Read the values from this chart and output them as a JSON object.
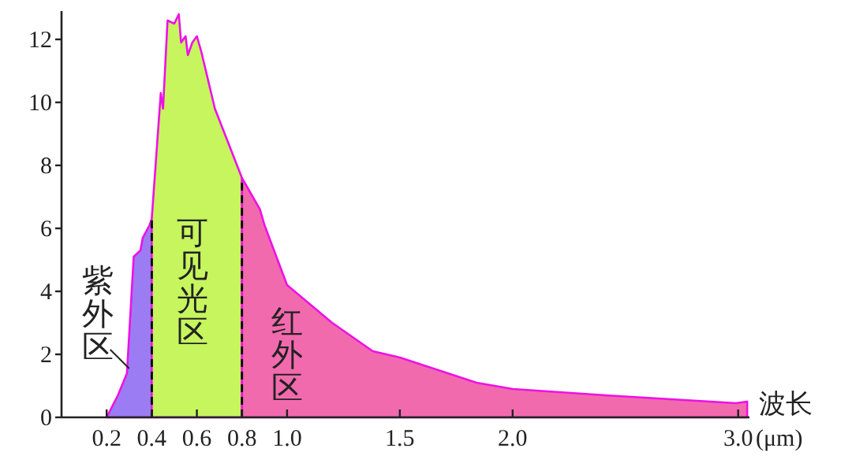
{
  "chart_data": {
    "type": "area",
    "xlabel": "波长",
    "grid": false,
    "xlim": [
      0,
      3.05
    ],
    "ylim": [
      0,
      12.9
    ],
    "xticks": [
      0.2,
      0.4,
      0.6,
      0.8,
      {
        "value": 1,
        "label": "1.0"
      },
      1.5,
      {
        "value": 2,
        "label": "2.0"
      },
      {
        "value": 3,
        "label": "3.0"
      }
    ],
    "yticks": [
      0,
      2,
      4,
      6,
      8,
      10,
      12
    ],
    "annotations": [
      "(μm)",
      "紫外区",
      "可见光区",
      "红外区"
    ],
    "ref_lines": [
      {
        "axis": "x",
        "value": 0.4,
        "line_style": "dashed",
        "color": "#000000"
      },
      {
        "axis": "x",
        "value": 0.8,
        "line_style": "dashed",
        "color": "#000000"
      }
    ],
    "series": [
      {
        "color": "#9b7cf2",
        "x": [
          0.2,
          0.25,
          0.29,
          0.32,
          0.35,
          0.36,
          0.39,
          0.4
        ],
        "values": [
          0,
          0.7,
          1.4,
          5.1,
          5.3,
          5.7,
          6.1,
          6.3
        ]
      },
      {
        "color": "#c6f55e",
        "x": [
          0.4,
          0.44,
          0.45,
          0.47,
          0.5,
          0.52,
          0.53,
          0.55,
          0.56,
          0.58,
          0.6,
          0.62,
          0.68,
          0.8
        ],
        "values": [
          6.3,
          10.3,
          9.8,
          12.6,
          12.5,
          12.8,
          11.9,
          12.1,
          11.5,
          11.9,
          12.1,
          11.6,
          9.8,
          7.6
        ]
      },
      {
        "color": "#f26aae",
        "x": [
          0.8,
          0.88,
          0.9,
          1.0,
          1.2,
          1.38,
          1.5,
          1.84,
          2.0,
          2.41,
          2.99,
          3.04
        ],
        "values": [
          7.6,
          6.6,
          6.1,
          4.2,
          3.0,
          2.1,
          1.9,
          1.1,
          0.9,
          0.7,
          0.45,
          0.5
        ]
      }
    ]
  }
}
